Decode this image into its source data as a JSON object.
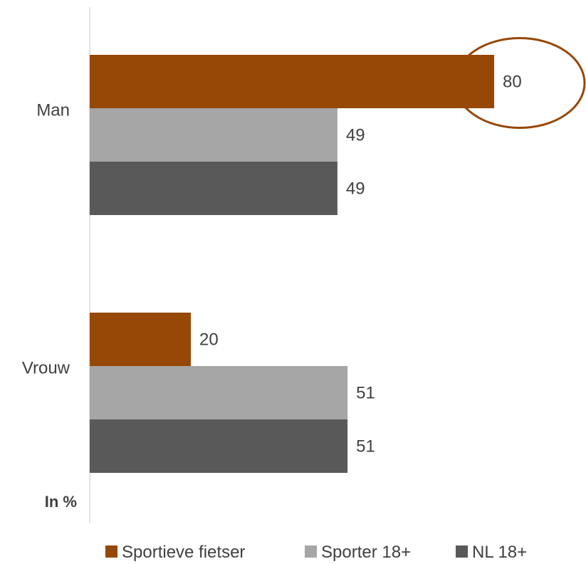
{
  "chart_data": {
    "type": "bar",
    "orientation": "horizontal",
    "categories": [
      "Man",
      "Vrouw"
    ],
    "series": [
      {
        "name": "Sportieve fietser",
        "values": [
          80,
          20
        ],
        "color": "#974706"
      },
      {
        "name": "Sporter 18+",
        "values": [
          49,
          51
        ],
        "color": "#a6a6a6"
      },
      {
        "name": "NL 18+",
        "values": [
          49,
          51
        ],
        "color": "#595959"
      }
    ],
    "unit_label": "In %",
    "data_labels": true,
    "legend_position": "bottom",
    "highlight": {
      "category": "Man",
      "series": "Sportieve fietser",
      "shape": "ellipse",
      "color": "#974706"
    },
    "xlim": [
      0,
      100
    ],
    "grid": false
  }
}
